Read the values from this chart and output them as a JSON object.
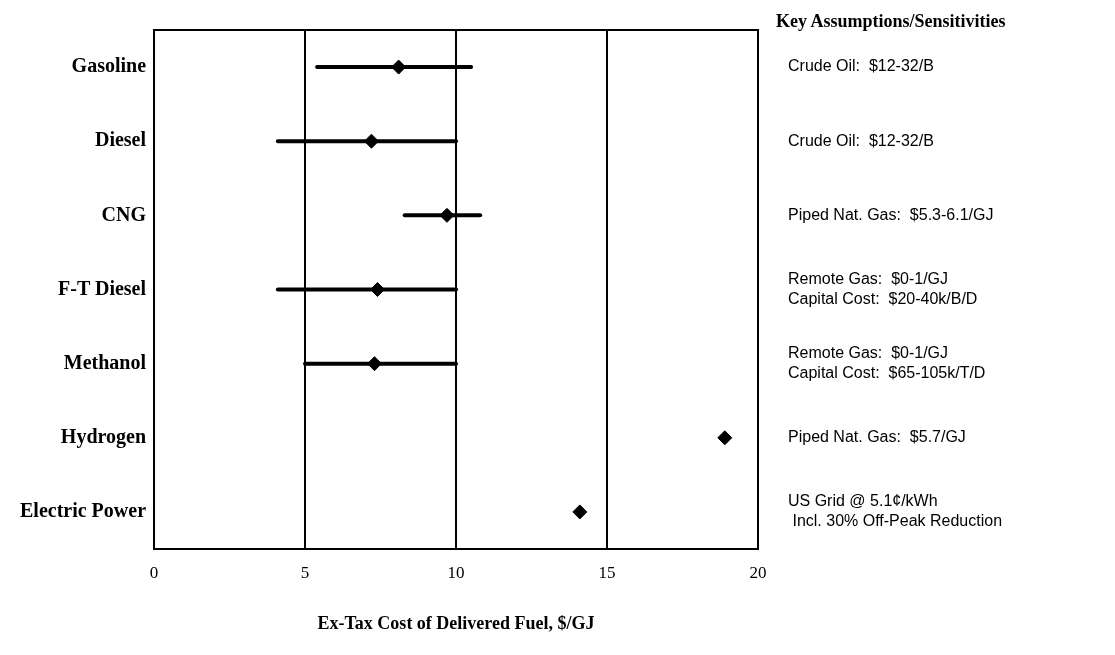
{
  "chart_data": {
    "type": "scatter",
    "orientation": "horizontal",
    "xlabel": "Ex-Tax Cost of Delivered Fuel, $/GJ",
    "categories": [
      "Gasoline",
      "Diesel",
      "CNG",
      "F-T Diesel",
      "Methanol",
      "Hydrogen",
      "Electric Power"
    ],
    "values": [
      8.1,
      7.2,
      9.7,
      7.4,
      7.3,
      18.9,
      14.1
    ],
    "errors": [
      [
        5.4,
        10.5
      ],
      [
        4.1,
        10
      ],
      [
        8.3,
        10.8
      ],
      [
        4.1,
        10
      ],
      [
        5.0,
        10
      ],
      null,
      null
    ],
    "color": "#000000",
    "marker": "diamond",
    "grid": "x",
    "legend": false,
    "xlim": [
      0,
      20
    ],
    "xticks": [
      0,
      5,
      10,
      15,
      20
    ],
    "annotations": [
      "Key Assumptions/Sensitivities",
      "Crude Oil:  $12-32/B",
      "Crude Oil:  $12-32/B",
      "Piped Nat. Gas:  $5.3-6.1/GJ",
      "Remote Gas:  $0-1/GJ\nCapital Cost:  $20-40k/B/D",
      "Remote Gas:  $0-1/GJ\nCapital Cost:  $65-105k/T/D",
      "Piped Nat. Gas:  $5.7/GJ",
      "US Grid @ 5.1¢/kWh\n Incl. 30% Off-Peak Reduction"
    ]
  }
}
